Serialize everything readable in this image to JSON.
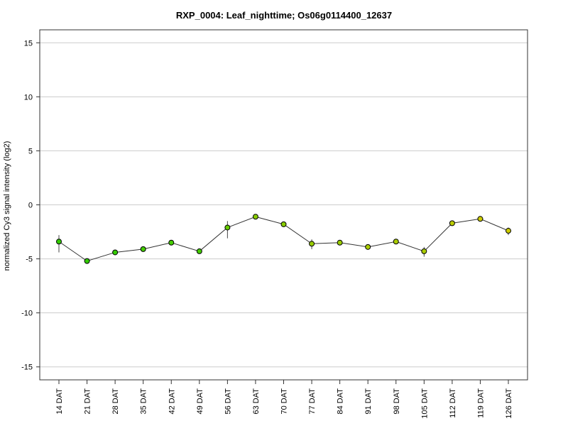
{
  "chart_data": {
    "type": "line",
    "title": "RXP_0004: Leaf_nighttime; Os06g0114400_12637",
    "xlabel": "",
    "ylabel": "normalized Cy3 signal intensity (log2)",
    "categories": [
      "14 DAT",
      "21 DAT",
      "28 DAT",
      "35 DAT",
      "42 DAT",
      "49 DAT",
      "56 DAT",
      "63 DAT",
      "70 DAT",
      "77 DAT",
      "84 DAT",
      "91 DAT",
      "98 DAT",
      "105 DAT",
      "112 DAT",
      "119 DAT",
      "126 DAT"
    ],
    "series": [
      {
        "values": [
          -3.4,
          -5.2,
          -4.4,
          -4.1,
          -3.5,
          -4.3,
          -2.1,
          -1.1,
          -1.8,
          -3.6,
          -3.5,
          -3.9,
          -3.4,
          -4.3,
          -1.7,
          -1.3,
          -2.4
        ],
        "error_low": [
          -4.4,
          -5.3,
          -4.5,
          -4.2,
          -3.6,
          -4.4,
          -3.1,
          -1.2,
          -1.9,
          -4.1,
          -3.6,
          -4.0,
          -3.5,
          -4.8,
          -1.8,
          -1.4,
          -2.8
        ],
        "error_high": [
          -2.8,
          -5.1,
          -4.3,
          -4.0,
          -3.4,
          -4.2,
          -1.5,
          -1.0,
          -1.6,
          -3.2,
          -3.4,
          -3.8,
          -3.3,
          -3.9,
          -1.5,
          -1.2,
          -2.1
        ],
        "marker_colors": [
          "#33cc00",
          "#33cc00",
          "#33cc00",
          "#44cc00",
          "#44cc00",
          "#44cc00",
          "#66cc00",
          "#88cc00",
          "#88cc00",
          "#99cc00",
          "#99cc00",
          "#aacc00",
          "#aacc00",
          "#aacc00",
          "#bbcc00",
          "#cccc00",
          "#cccc00"
        ]
      }
    ],
    "yticks": [
      15,
      10,
      5,
      0,
      -5,
      -10,
      -15
    ],
    "ylim": [
      -16.2,
      16.2
    ],
    "grid": true,
    "colors": {
      "line": "#333333",
      "grid": "#cccccc",
      "frame": "#333333"
    }
  }
}
